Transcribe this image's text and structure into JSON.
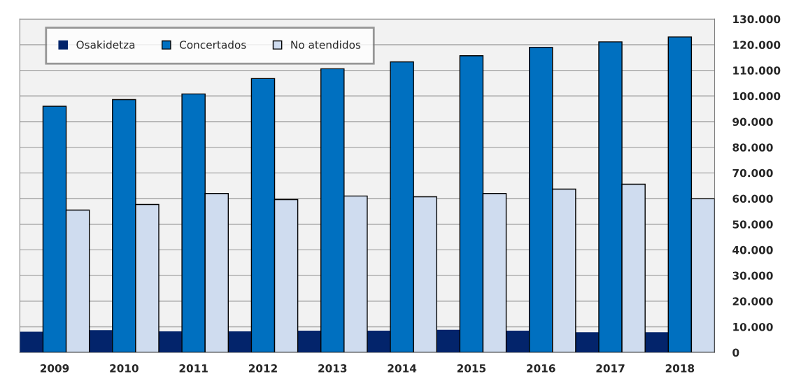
{
  "chart_data": {
    "type": "bar",
    "categories": [
      "2009",
      "2010",
      "2011",
      "2012",
      "2013",
      "2014",
      "2015",
      "2016",
      "2017",
      "2018"
    ],
    "series": [
      {
        "name": "Osakidetza",
        "color": "#03246b",
        "values": [
          8100,
          8700,
          8200,
          8200,
          8500,
          8500,
          8800,
          8500,
          7900,
          7900
        ]
      },
      {
        "name": "Concertados",
        "color": "#0070c0",
        "values": [
          96000,
          98600,
          100800,
          106800,
          110600,
          113300,
          115700,
          119000,
          121100,
          123000
        ]
      },
      {
        "name": "No atendidos",
        "color": "#cfdcef",
        "values": [
          55500,
          57700,
          62000,
          59600,
          61000,
          60700,
          62000,
          63700,
          65600,
          59900
        ]
      }
    ],
    "ylim": [
      0,
      130000
    ],
    "yticks": [
      {
        "value": 0,
        "label": "0"
      },
      {
        "value": 10000,
        "label": "10.000"
      },
      {
        "value": 20000,
        "label": "20.000"
      },
      {
        "value": 30000,
        "label": "30.000"
      },
      {
        "value": 40000,
        "label": "40.000"
      },
      {
        "value": 50000,
        "label": "50.000"
      },
      {
        "value": 60000,
        "label": "60.000"
      },
      {
        "value": 70000,
        "label": "70.000"
      },
      {
        "value": 80000,
        "label": "80.000"
      },
      {
        "value": 90000,
        "label": "90.000"
      },
      {
        "value": 100000,
        "label": "100.000"
      },
      {
        "value": 110000,
        "label": "110.000"
      },
      {
        "value": 120000,
        "label": "120.000"
      },
      {
        "value": 130000,
        "label": "130.000"
      }
    ],
    "grid": "y",
    "legend": "top left"
  }
}
